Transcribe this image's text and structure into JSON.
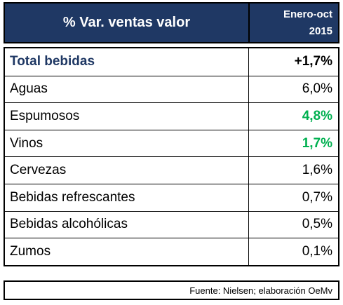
{
  "colors": {
    "header_bg": "#1f3864",
    "highlight": "#00b050",
    "total_label": "#1f3864"
  },
  "chart_data": {
    "type": "table",
    "title": "% Var. ventas valor",
    "period_line1": "Enero-oct",
    "period_line2": "2015",
    "rows": [
      {
        "category": "Total bebidas",
        "value": "+1,7%"
      },
      {
        "category": "Aguas",
        "value": "6,0%"
      },
      {
        "category": "Espumosos",
        "value": "4,8%"
      },
      {
        "category": "Vinos",
        "value": "1,7%"
      },
      {
        "category": "Cervezas",
        "value": "1,6%"
      },
      {
        "category": "Bebidas refrescantes",
        "value": "0,7%"
      },
      {
        "category": "Bebidas alcohólicas",
        "value": "0,5%"
      },
      {
        "category": "Zumos",
        "value": "0,1%"
      }
    ],
    "values_numeric": [
      1.7,
      6.0,
      4.8,
      1.7,
      1.6,
      0.7,
      0.5,
      0.1
    ],
    "source": "Fuente: Nielsen; elaboración OeMv"
  }
}
